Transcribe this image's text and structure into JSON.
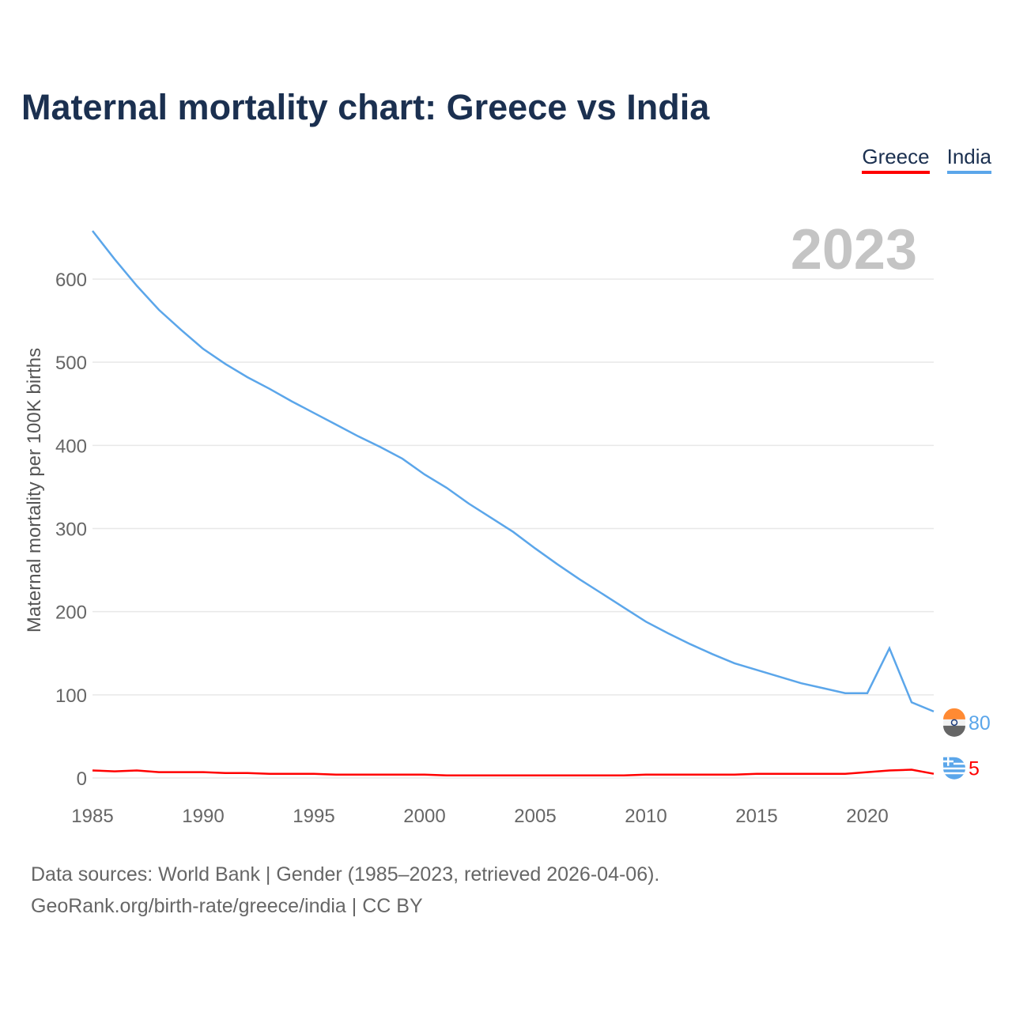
{
  "chart_data": {
    "type": "line",
    "title": "Maternal mortality chart: Greece vs India",
    "xlabel": "",
    "ylabel": "Maternal mortality per 100K births",
    "xlim": [
      1985,
      2023
    ],
    "ylim": [
      0,
      650
    ],
    "yticks": [
      0,
      100,
      200,
      300,
      400,
      500,
      600
    ],
    "xticks": [
      1985,
      1990,
      1995,
      2000,
      2005,
      2010,
      2015,
      2020
    ],
    "year_label": "2023",
    "grid": true,
    "legend_placement": "top-right",
    "x": [
      1985,
      1986,
      1987,
      1988,
      1989,
      1990,
      1991,
      1992,
      1993,
      1994,
      1995,
      1996,
      1997,
      1998,
      1999,
      2000,
      2001,
      2002,
      2003,
      2004,
      2005,
      2006,
      2007,
      2008,
      2009,
      2010,
      2011,
      2012,
      2013,
      2014,
      2015,
      2016,
      2017,
      2018,
      2019,
      2020,
      2021,
      2022,
      2023
    ],
    "series": [
      {
        "name": "Greece",
        "color": "#ff0000",
        "end_label": "5",
        "values": [
          9,
          8,
          9,
          7,
          7,
          7,
          6,
          6,
          5,
          5,
          5,
          4,
          4,
          4,
          4,
          4,
          3,
          3,
          3,
          3,
          3,
          3,
          3,
          3,
          3,
          4,
          4,
          4,
          4,
          4,
          5,
          5,
          5,
          5,
          5,
          7,
          9,
          10,
          5
        ]
      },
      {
        "name": "India",
        "color": "#5ba6ea",
        "end_label": "80",
        "values": [
          658,
          624,
          592,
          563,
          539,
          516,
          498,
          482,
          468,
          453,
          439,
          425,
          411,
          398,
          384,
          365,
          349,
          330,
          313,
          296,
          276,
          257,
          239,
          222,
          205,
          188,
          174,
          161,
          149,
          138,
          130,
          122,
          114,
          108,
          102,
          102,
          156,
          91,
          80
        ]
      }
    ]
  },
  "source_line1": "Data sources: World Bank | Gender (1985–2023, retrieved 2026-04-06).",
  "source_line2": "GeoRank.org/birth-rate/greece/india | CC BY"
}
